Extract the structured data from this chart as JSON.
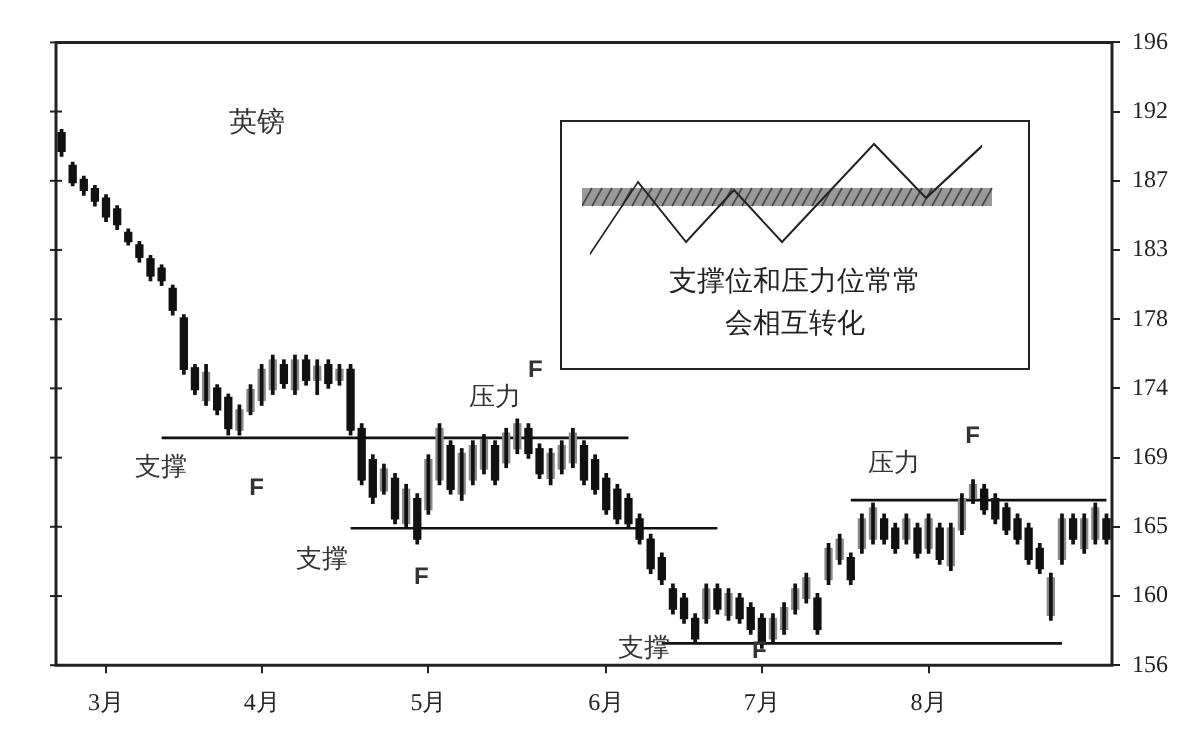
{
  "chart_data": {
    "type": "candlestick",
    "title": "英镑",
    "categories": [
      null,
      null,
      null,
      null,
      "3月",
      null,
      null,
      null,
      null,
      null,
      null,
      null,
      null,
      null,
      null,
      null,
      null,
      null,
      "4月",
      null,
      null,
      null,
      null,
      null,
      null,
      null,
      null,
      null,
      null,
      null,
      null,
      null,
      null,
      "5月",
      null,
      null,
      null,
      null,
      null,
      null,
      null,
      null,
      null,
      null,
      null,
      null,
      null,
      null,
      null,
      "6月",
      null,
      null,
      null,
      null,
      null,
      null,
      null,
      null,
      null,
      null,
      null,
      null,
      null,
      "7月",
      null,
      null,
      null,
      null,
      null,
      null,
      null,
      null,
      null,
      null,
      null,
      null,
      null,
      null,
      "8月",
      null,
      null,
      null,
      null,
      null,
      null,
      null,
      null,
      null,
      null,
      null,
      null,
      null,
      null,
      null,
      null
    ],
    "ohlc": [
      [
        190.2,
        190.4,
        188.7,
        189.0
      ],
      [
        188.1,
        188.3,
        186.8,
        187.0
      ],
      [
        187.2,
        187.4,
        186.2,
        186.5
      ],
      [
        186.6,
        186.8,
        185.5,
        185.8
      ],
      [
        186.0,
        186.2,
        184.5,
        184.8
      ],
      [
        185.3,
        185.5,
        184.0,
        184.3
      ],
      [
        183.8,
        184.0,
        183.0,
        183.2
      ],
      [
        183.0,
        183.2,
        181.9,
        182.2
      ],
      [
        182.1,
        182.3,
        180.7,
        181.0
      ],
      [
        181.5,
        181.7,
        180.4,
        180.7
      ],
      [
        180.2,
        180.4,
        178.5,
        178.8
      ],
      [
        178.3,
        178.5,
        174.7,
        175.0
      ],
      [
        175.1,
        175.3,
        173.4,
        173.7
      ],
      [
        173.0,
        175.3,
        172.7,
        174.8
      ],
      [
        173.8,
        174.0,
        172.1,
        172.4
      ],
      [
        173.2,
        173.4,
        170.8,
        171.2
      ],
      [
        171.1,
        172.7,
        170.8,
        172.4
      ],
      [
        172.3,
        174.0,
        172.1,
        173.7
      ],
      [
        173.0,
        175.3,
        172.7,
        175.0
      ],
      [
        173.7,
        175.9,
        173.4,
        175.6
      ],
      [
        175.3,
        175.6,
        173.8,
        174.1
      ],
      [
        173.7,
        175.9,
        173.4,
        175.6
      ],
      [
        175.6,
        175.9,
        174.0,
        174.3
      ],
      [
        174.3,
        175.6,
        173.4,
        175.2
      ],
      [
        175.3,
        175.6,
        173.8,
        174.1
      ],
      [
        174.3,
        175.3,
        174.0,
        175.0
      ],
      [
        175.0,
        175.3,
        170.8,
        171.1
      ],
      [
        171.2,
        171.5,
        167.6,
        167.9
      ],
      [
        169.2,
        169.5,
        166.4,
        166.8
      ],
      [
        167.2,
        168.9,
        167.0,
        168.6
      ],
      [
        168.0,
        168.3,
        165.1,
        165.4
      ],
      [
        165.1,
        167.6,
        164.8,
        167.3
      ],
      [
        166.7,
        167.0,
        163.8,
        164.1
      ],
      [
        166.0,
        169.5,
        165.7,
        169.2
      ],
      [
        167.9,
        171.5,
        167.6,
        171.2
      ],
      [
        170.1,
        170.4,
        167.0,
        167.3
      ],
      [
        167.0,
        169.9,
        166.6,
        169.6
      ],
      [
        167.9,
        170.4,
        167.6,
        170.1
      ],
      [
        168.6,
        170.8,
        168.3,
        170.5
      ],
      [
        170.1,
        170.4,
        167.6,
        167.9
      ],
      [
        169.0,
        171.2,
        168.7,
        170.9
      ],
      [
        169.9,
        171.8,
        169.6,
        171.5
      ],
      [
        171.2,
        171.5,
        169.3,
        169.6
      ],
      [
        169.9,
        170.2,
        168.0,
        168.3
      ],
      [
        168.0,
        169.9,
        167.6,
        169.6
      ],
      [
        168.6,
        170.4,
        168.3,
        170.1
      ],
      [
        169.0,
        171.2,
        168.7,
        170.9
      ],
      [
        170.1,
        170.4,
        167.6,
        167.9
      ],
      [
        169.2,
        169.5,
        167.0,
        167.3
      ],
      [
        168.0,
        168.3,
        165.7,
        166.0
      ],
      [
        167.3,
        167.6,
        165.1,
        165.4
      ],
      [
        166.7,
        167.0,
        164.8,
        165.1
      ],
      [
        165.4,
        165.7,
        163.8,
        164.1
      ],
      [
        164.1,
        164.4,
        161.9,
        162.2
      ],
      [
        162.9,
        163.2,
        161.2,
        161.5
      ],
      [
        160.9,
        161.2,
        159.3,
        159.6
      ],
      [
        160.3,
        160.6,
        158.7,
        159.0
      ],
      [
        159.0,
        159.3,
        157.4,
        157.7
      ],
      [
        159.0,
        161.2,
        158.7,
        160.9
      ],
      [
        160.9,
        161.2,
        159.3,
        159.6
      ],
      [
        159.2,
        160.9,
        158.9,
        160.6
      ],
      [
        160.3,
        160.6,
        158.7,
        159.0
      ],
      [
        159.7,
        160.0,
        158.0,
        158.3
      ],
      [
        159.0,
        159.3,
        157.1,
        157.4
      ],
      [
        157.7,
        159.3,
        157.4,
        159.0
      ],
      [
        158.3,
        160.0,
        158.0,
        159.7
      ],
      [
        159.6,
        161.2,
        159.3,
        160.9
      ],
      [
        160.3,
        161.9,
        160.0,
        161.6
      ],
      [
        160.3,
        160.6,
        158.0,
        158.3
      ],
      [
        161.5,
        163.8,
        161.2,
        163.5
      ],
      [
        162.8,
        164.4,
        162.5,
        164.1
      ],
      [
        162.9,
        163.2,
        161.2,
        161.5
      ],
      [
        163.5,
        165.7,
        163.2,
        165.4
      ],
      [
        164.1,
        166.4,
        163.8,
        166.1
      ],
      [
        165.4,
        165.7,
        163.8,
        164.1
      ],
      [
        164.8,
        165.1,
        163.2,
        163.5
      ],
      [
        164.1,
        165.7,
        163.8,
        165.4
      ],
      [
        164.8,
        165.1,
        162.9,
        163.2
      ],
      [
        163.5,
        165.7,
        163.2,
        165.4
      ],
      [
        164.8,
        165.1,
        162.5,
        162.8
      ],
      [
        162.4,
        165.1,
        162.1,
        164.8
      ],
      [
        164.7,
        167.0,
        164.4,
        166.7
      ],
      [
        166.7,
        167.9,
        166.4,
        167.6
      ],
      [
        167.3,
        167.6,
        165.7,
        166.0
      ],
      [
        166.7,
        167.0,
        165.1,
        165.4
      ],
      [
        166.1,
        166.4,
        164.4,
        164.7
      ],
      [
        165.4,
        165.7,
        163.8,
        164.1
      ],
      [
        164.8,
        165.1,
        162.5,
        162.8
      ],
      [
        163.5,
        163.8,
        161.9,
        162.2
      ],
      [
        159.2,
        161.9,
        158.9,
        161.6
      ],
      [
        162.8,
        165.7,
        162.5,
        165.4
      ],
      [
        165.4,
        165.7,
        163.8,
        164.1
      ],
      [
        163.5,
        165.7,
        163.2,
        165.4
      ],
      [
        164.1,
        166.4,
        163.8,
        166.1
      ],
      [
        165.4,
        165.7,
        163.8,
        164.1
      ]
    ],
    "series": [
      {
        "type": "line",
        "color": "#111111",
        "values": [
          null,
          null,
          null,
          null,
          null,
          null,
          null,
          null,
          null,
          170.6,
          170.6,
          170.6,
          170.6,
          170.6,
          170.6,
          170.6,
          170.6,
          170.6,
          170.6,
          170.6,
          170.6,
          170.6,
          170.6,
          170.6,
          170.6,
          170.6,
          170.6,
          170.6,
          170.6,
          170.6,
          170.6,
          170.6,
          170.6,
          170.6,
          170.6,
          170.6,
          170.6,
          170.6,
          170.6,
          170.6,
          170.6,
          170.6,
          170.6,
          170.6,
          170.6,
          170.6,
          170.6,
          170.6,
          170.6,
          170.6,
          170.6,
          170.6,
          null,
          null,
          null,
          null,
          null,
          null,
          null,
          null,
          null,
          null,
          null,
          null,
          null,
          null,
          null,
          null,
          null,
          null,
          null,
          null,
          null,
          null,
          null,
          null,
          null,
          null,
          null,
          null,
          null,
          null,
          null,
          null,
          null,
          null,
          null,
          null,
          null,
          null,
          null,
          null,
          null,
          null,
          null
        ]
      },
      {
        "type": "line",
        "color": "#111111",
        "values": [
          null,
          null,
          null,
          null,
          null,
          null,
          null,
          null,
          null,
          null,
          null,
          null,
          null,
          null,
          null,
          null,
          null,
          null,
          null,
          null,
          null,
          null,
          null,
          null,
          null,
          null,
          164.8,
          164.8,
          164.8,
          164.8,
          164.8,
          164.8,
          164.8,
          164.8,
          164.8,
          164.8,
          164.8,
          164.8,
          164.8,
          164.8,
          164.8,
          164.8,
          164.8,
          164.8,
          164.8,
          164.8,
          164.8,
          164.8,
          164.8,
          164.8,
          164.8,
          164.8,
          164.8,
          164.8,
          164.8,
          164.8,
          164.8,
          164.8,
          164.8,
          164.8,
          null,
          null,
          null,
          null,
          null,
          null,
          null,
          null,
          null,
          null,
          null,
          null,
          null,
          null,
          null,
          null,
          null,
          null,
          null,
          null,
          null,
          null,
          null,
          null,
          null,
          null,
          null,
          null,
          null,
          null,
          null,
          null,
          null,
          null,
          null
        ]
      },
      {
        "type": "line",
        "color": "#111111",
        "values": [
          null,
          null,
          null,
          null,
          null,
          null,
          null,
          null,
          null,
          null,
          null,
          null,
          null,
          null,
          null,
          null,
          null,
          null,
          null,
          null,
          null,
          null,
          null,
          null,
          null,
          null,
          null,
          null,
          null,
          null,
          null,
          null,
          null,
          null,
          null,
          null,
          null,
          null,
          null,
          null,
          null,
          null,
          null,
          null,
          null,
          null,
          null,
          null,
          null,
          null,
          null,
          null,
          null,
          null,
          157.4,
          157.4,
          157.4,
          157.4,
          157.4,
          157.4,
          157.4,
          157.4,
          157.4,
          157.4,
          157.4,
          157.4,
          157.4,
          157.4,
          157.4,
          157.4,
          157.4,
          157.4,
          157.4,
          157.4,
          157.4,
          157.4,
          157.4,
          157.4,
          157.4,
          157.4,
          157.4,
          157.4,
          157.4,
          157.4,
          157.4,
          157.4,
          157.4,
          157.4,
          157.4,
          157.4,
          157.4,
          null,
          null,
          null,
          null
        ]
      },
      {
        "type": "line",
        "color": "#111111",
        "values": [
          null,
          null,
          null,
          null,
          null,
          null,
          null,
          null,
          null,
          null,
          null,
          null,
          null,
          null,
          null,
          null,
          null,
          null,
          null,
          null,
          null,
          null,
          null,
          null,
          null,
          null,
          null,
          null,
          null,
          null,
          null,
          null,
          null,
          null,
          null,
          null,
          null,
          null,
          null,
          null,
          null,
          null,
          null,
          null,
          null,
          null,
          null,
          null,
          null,
          null,
          null,
          null,
          null,
          null,
          null,
          null,
          null,
          null,
          null,
          null,
          null,
          null,
          null,
          null,
          null,
          null,
          null,
          null,
          null,
          null,
          null,
          166.6,
          166.6,
          166.6,
          166.6,
          166.6,
          166.6,
          166.6,
          166.6,
          166.6,
          166.6,
          166.6,
          166.6,
          166.6,
          166.6,
          166.6,
          166.6,
          166.6,
          166.6,
          166.6,
          166.6,
          166.6,
          166.6,
          166.6,
          166.6
        ]
      }
    ],
    "ylim": [
      156,
      196
    ],
    "yticks": [
      196,
      {
        "value": 191.56,
        "label": "192"
      },
      {
        "value": 187.11,
        "label": "187"
      },
      {
        "value": 182.67,
        "label": "183"
      },
      {
        "value": 178.22,
        "label": "178"
      },
      {
        "value": 173.78,
        "label": "174"
      },
      {
        "value": 169.33,
        "label": "169"
      },
      {
        "value": 164.89,
        "label": "165"
      },
      {
        "value": 160.44,
        "label": "160"
      },
      156
    ],
    "grid": false,
    "annotations": [
      "支撑",
      "F",
      "支撑",
      "F",
      "压力",
      "F",
      "支撑",
      "F",
      "压力",
      "F",
      "支撑位和压力位常常",
      "会相互转化"
    ]
  }
}
